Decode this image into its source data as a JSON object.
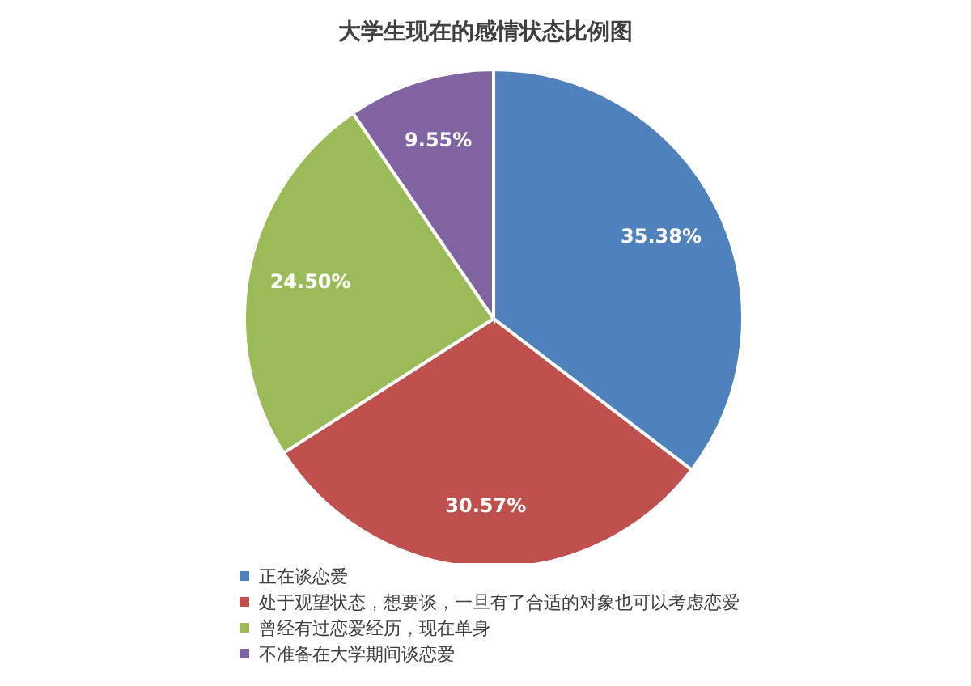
{
  "chart_data": {
    "type": "pie",
    "title": "大学生现在的感情状态比例图",
    "categories": [
      "正在谈恋爱",
      "处于观望状态，想要谈，一旦有了合适的对象也可以考虑恋爱",
      "曾经有过恋爱经历，现在单身",
      "不准备在大学期间谈恋爱"
    ],
    "values": [
      35.38,
      30.57,
      24.5,
      9.55
    ],
    "value_labels": [
      "35.38%",
      "30.57%",
      "24.50%",
      "9.55%"
    ],
    "colors": [
      "#4f81bd",
      "#c0504d",
      "#9bbb59",
      "#8064a2"
    ],
    "legend": "bottom"
  }
}
